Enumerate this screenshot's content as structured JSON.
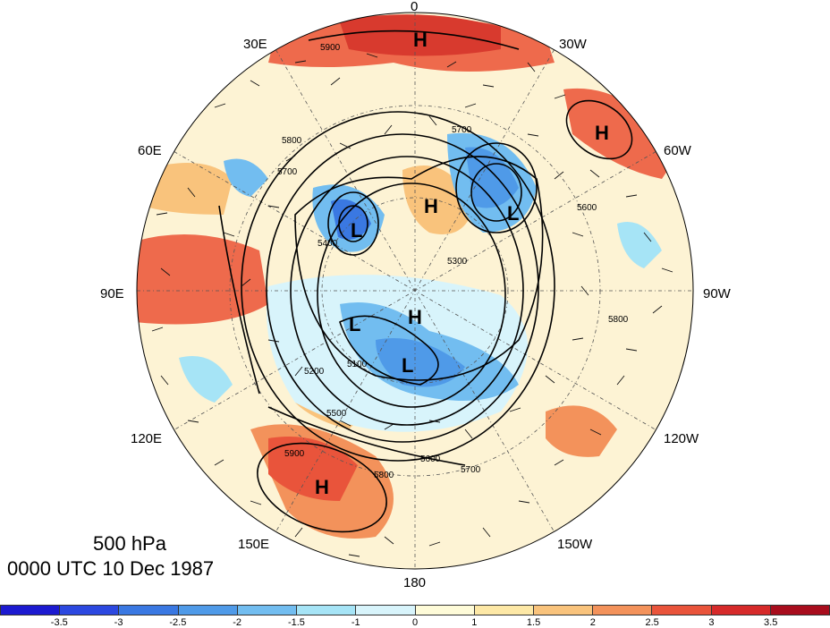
{
  "lon_labels": [
    {
      "text": "0",
      "name": "lon-label-0"
    },
    {
      "text": "30W",
      "name": "lon-label-30w"
    },
    {
      "text": "60W",
      "name": "lon-label-60w"
    },
    {
      "text": "90W",
      "name": "lon-label-90w"
    },
    {
      "text": "120W",
      "name": "lon-label-120w"
    },
    {
      "text": "150W",
      "name": "lon-label-150w"
    },
    {
      "text": "180",
      "name": "lon-label-180"
    },
    {
      "text": "150E",
      "name": "lon-label-150e"
    },
    {
      "text": "120E",
      "name": "lon-label-120e"
    },
    {
      "text": "90E",
      "name": "lon-label-90e"
    },
    {
      "text": "60E",
      "name": "lon-label-60e"
    },
    {
      "text": "30E",
      "name": "lon-label-30e"
    }
  ],
  "caption": {
    "level": "500 hPa",
    "time": "0000 UTC 10 Dec 1987"
  },
  "contour_labels": [
    "5900",
    "5800",
    "5700",
    "5600",
    "5300",
    "5400",
    "5200",
    "5500",
    "5100"
  ],
  "centers": [
    {
      "text": "H",
      "name": "high-center-north"
    },
    {
      "text": "H",
      "name": "high-center-atlantic"
    },
    {
      "text": "H",
      "name": "high-center-europe"
    },
    {
      "text": "H",
      "name": "high-center-pole"
    },
    {
      "text": "H",
      "name": "high-center-pacific"
    },
    {
      "text": "L",
      "name": "low-center-greenland"
    },
    {
      "text": "L",
      "name": "low-center-scandinavia"
    },
    {
      "text": "L",
      "name": "low-center-siberia"
    },
    {
      "text": "L",
      "name": "low-center-east-siberia"
    }
  ],
  "colorbar": {
    "colors": [
      "#1c1ad0",
      "#2c48e0",
      "#3a78e2",
      "#4f9ae8",
      "#72bdf0",
      "#a6e4f6",
      "#d8f4fb",
      "#fefbd8",
      "#fde8a6",
      "#f9c37c",
      "#f3925b",
      "#e9543b",
      "#d62a2a",
      "#a80d1d"
    ],
    "ticks": [
      "-3.5",
      "-3",
      "-2.5",
      "-2",
      "-1.5",
      "-1",
      "0",
      "1",
      "1.5",
      "2",
      "2.5",
      "3",
      "3.5"
    ]
  }
}
